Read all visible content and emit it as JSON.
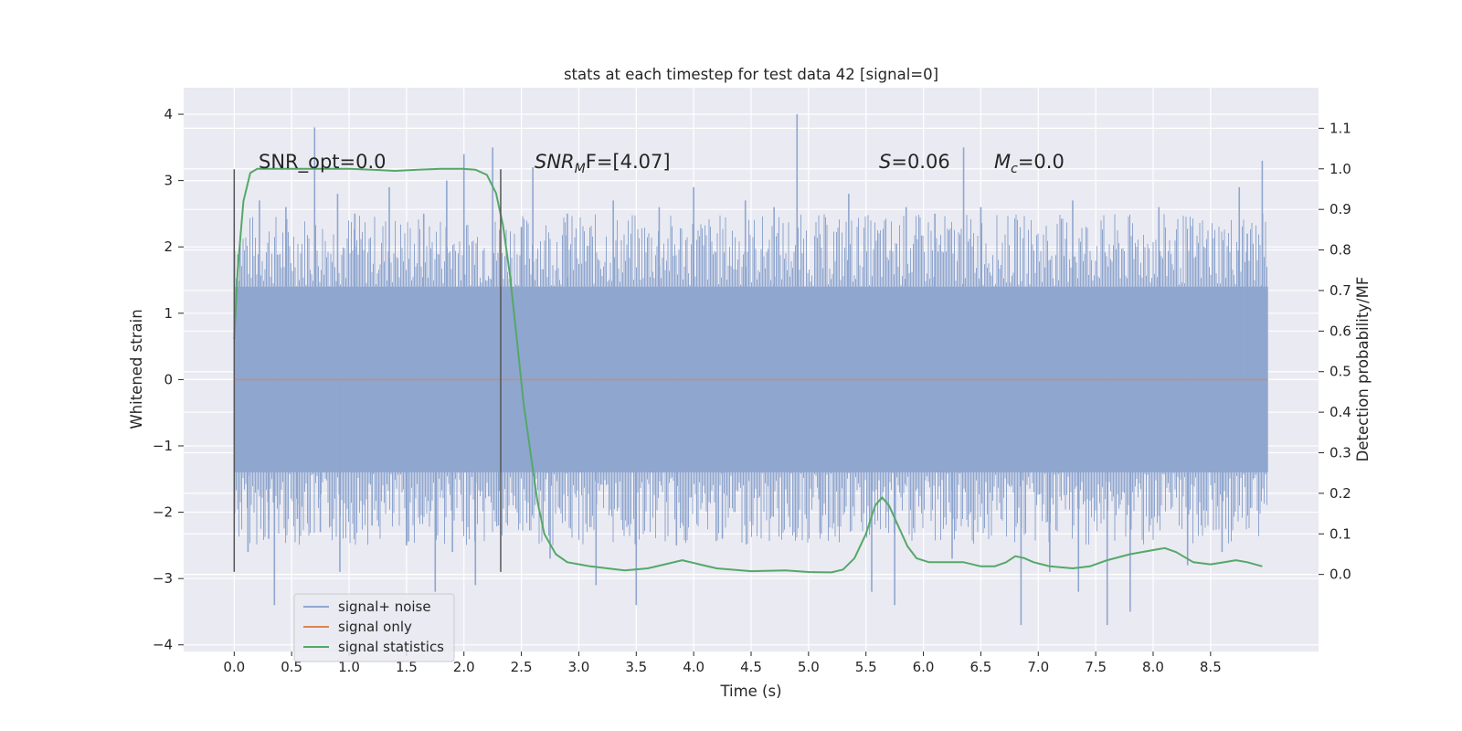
{
  "chart_data": {
    "type": "line",
    "title": "stats at each timestep for test data 42 [signal=0]",
    "xlabel": "Time (s)",
    "ylabel_left": "Whitened strain",
    "ylabel_right": "Detection probability/MF",
    "xlim": [
      -0.44,
      9.44
    ],
    "ylim_left": [
      -4.1,
      4.4
    ],
    "ylim_right": [
      -0.19,
      1.2
    ],
    "x_ticks": [
      "0.0",
      "0.5",
      "1.0",
      "1.5",
      "2.0",
      "2.5",
      "3.0",
      "3.5",
      "4.0",
      "4.5",
      "5.0",
      "5.5",
      "6.0",
      "6.5",
      "7.0",
      "7.5",
      "8.0",
      "8.5"
    ],
    "y_ticks_left": [
      "−4",
      "−3",
      "−2",
      "−1",
      "0",
      "1",
      "2",
      "3",
      "4"
    ],
    "y_ticks_right": [
      "0.0",
      "0.1",
      "0.2",
      "0.3",
      "0.4",
      "0.5",
      "0.6",
      "0.7",
      "0.8",
      "0.9",
      "1.0",
      "1.1"
    ],
    "grid": true,
    "legend_position": "lower-left",
    "vertical_markers": [
      0.0,
      2.32
    ],
    "annotations": {
      "snr_opt": "SNR_opt=0.0",
      "snr_mf_base": "SNR",
      "snr_mf_sub": "M",
      "snr_mf_rest": "F=[4.07]",
      "s_symbol": "S",
      "s_rest": "=0.06",
      "mc_symbol": "M",
      "mc_sub": "c",
      "mc_rest": "=0.0"
    },
    "series": [
      {
        "name": "signal+ noise",
        "color": "#8fa6cf",
        "axis": "left",
        "x_range": [
          0.0,
          9.0
        ],
        "core_band": [
          -1.4,
          1.4
        ],
        "spikes": [
          [
            0.05,
            2.0
          ],
          [
            0.12,
            -2.6
          ],
          [
            0.22,
            2.7
          ],
          [
            0.3,
            -2.4
          ],
          [
            0.35,
            -3.4
          ],
          [
            0.45,
            2.6
          ],
          [
            0.55,
            -2.1
          ],
          [
            0.7,
            3.8
          ],
          [
            0.75,
            -2.3
          ],
          [
            0.9,
            2.8
          ],
          [
            0.92,
            -2.9
          ],
          [
            1.05,
            2.5
          ],
          [
            1.2,
            -2.2
          ],
          [
            1.35,
            2.9
          ],
          [
            1.5,
            -2.5
          ],
          [
            1.65,
            2.5
          ],
          [
            1.75,
            -3.2
          ],
          [
            1.85,
            3.0
          ],
          [
            1.9,
            -2.6
          ],
          [
            2.0,
            3.4
          ],
          [
            2.1,
            -3.1
          ],
          [
            2.25,
            3.5
          ],
          [
            2.3,
            -2.2
          ],
          [
            2.5,
            2.3
          ],
          [
            2.6,
            3.2
          ],
          [
            2.75,
            -2.7
          ],
          [
            2.9,
            2.5
          ],
          [
            3.15,
            -3.1
          ],
          [
            3.3,
            2.7
          ],
          [
            3.5,
            -3.4
          ],
          [
            3.7,
            2.6
          ],
          [
            3.85,
            -2.5
          ],
          [
            4.0,
            2.9
          ],
          [
            4.25,
            -2.4
          ],
          [
            4.45,
            2.7
          ],
          [
            4.7,
            2.6
          ],
          [
            4.9,
            4.0
          ],
          [
            5.1,
            -2.3
          ],
          [
            5.35,
            2.8
          ],
          [
            5.55,
            -3.2
          ],
          [
            5.75,
            -3.4
          ],
          [
            5.85,
            2.6
          ],
          [
            6.1,
            2.5
          ],
          [
            6.25,
            -2.7
          ],
          [
            6.35,
            3.5
          ],
          [
            6.5,
            2.6
          ],
          [
            6.85,
            -3.7
          ],
          [
            7.1,
            -2.9
          ],
          [
            7.3,
            2.7
          ],
          [
            7.35,
            -3.2
          ],
          [
            7.6,
            -3.7
          ],
          [
            7.8,
            -3.5
          ],
          [
            8.05,
            2.6
          ],
          [
            8.3,
            -2.8
          ],
          [
            8.6,
            -2.6
          ],
          [
            8.75,
            2.9
          ],
          [
            8.82,
            2.2
          ],
          [
            8.95,
            3.3
          ]
        ]
      },
      {
        "name": "signal only",
        "color": "#dd8452",
        "axis": "left",
        "x": [
          0.0,
          9.0
        ],
        "y": [
          0.0,
          0.0
        ]
      },
      {
        "name": "signal statistics",
        "color": "#55a868",
        "axis": "right",
        "x": [
          0.0,
          0.03,
          0.08,
          0.14,
          0.2,
          0.4,
          0.6,
          0.8,
          1.0,
          1.2,
          1.4,
          1.6,
          1.8,
          2.0,
          2.1,
          2.2,
          2.28,
          2.34,
          2.4,
          2.46,
          2.52,
          2.58,
          2.64,
          2.7,
          2.8,
          2.9,
          3.1,
          3.4,
          3.6,
          3.75,
          3.9,
          4.05,
          4.2,
          4.5,
          4.8,
          5.0,
          5.2,
          5.3,
          5.4,
          5.5,
          5.58,
          5.64,
          5.7,
          5.78,
          5.86,
          5.94,
          6.05,
          6.2,
          6.35,
          6.5,
          6.62,
          6.72,
          6.8,
          6.88,
          6.96,
          7.1,
          7.3,
          7.45,
          7.6,
          7.8,
          8.0,
          8.1,
          8.2,
          8.35,
          8.5,
          8.62,
          8.72,
          8.82,
          8.95
        ],
        "y": [
          0.58,
          0.75,
          0.92,
          0.99,
          1.0,
          1.0,
          1.0,
          1.0,
          1.0,
          0.998,
          0.995,
          0.998,
          1.0,
          1.0,
          0.998,
          0.985,
          0.94,
          0.86,
          0.74,
          0.58,
          0.42,
          0.3,
          0.18,
          0.1,
          0.05,
          0.03,
          0.02,
          0.01,
          0.015,
          0.025,
          0.035,
          0.025,
          0.015,
          0.008,
          0.01,
          0.006,
          0.005,
          0.012,
          0.04,
          0.1,
          0.17,
          0.19,
          0.17,
          0.12,
          0.07,
          0.04,
          0.03,
          0.03,
          0.03,
          0.02,
          0.02,
          0.03,
          0.045,
          0.04,
          0.03,
          0.02,
          0.015,
          0.02,
          0.035,
          0.05,
          0.06,
          0.065,
          0.055,
          0.03,
          0.025,
          0.03,
          0.035,
          0.03,
          0.02
        ]
      }
    ]
  }
}
